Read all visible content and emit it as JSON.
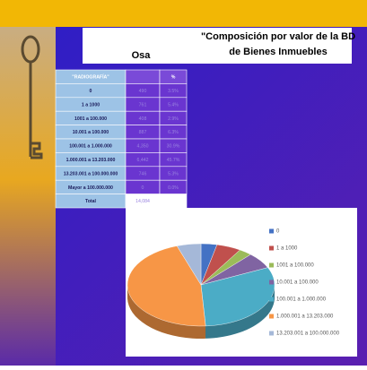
{
  "header": {
    "left": "Osa",
    "title_line1": "\"Composición por valor de la BD",
    "title_line2": "de Bienes Inmuebles"
  },
  "table": {
    "header": [
      "\"RADIOGRAFÍA\"",
      "%"
    ],
    "rows": [
      [
        "0",
        "490",
        "3.5%"
      ],
      [
        "1 a 1000",
        "761",
        "5.4%"
      ],
      [
        "1001 a 100.000",
        "408",
        "2.9%"
      ],
      [
        "10.001 a 100.000",
        "887",
        "6.3%"
      ],
      [
        "100.001 a 1.000.000",
        "4,350",
        "30.9%"
      ],
      [
        "1.000.001 a 13.203.000",
        "6,442",
        "45.7%"
      ],
      [
        "13.203.001 a 100.000.000",
        "746",
        "5.3%"
      ],
      [
        "Mayor a 100.000.000",
        "0",
        "0.0%"
      ]
    ],
    "total": [
      "Total",
      "14,084"
    ]
  },
  "chart_data": {
    "type": "pie",
    "categories": [
      "0",
      "1 a 1000",
      "1001 a 100.000",
      "10.001 a 100.000",
      "100.001 a 1.000.000",
      "1.000.001 a 13.203.000",
      "13.203.001 a 100.000.000"
    ],
    "values": [
      3.5,
      5.4,
      2.9,
      6.3,
      30.9,
      45.7,
      5.3
    ],
    "colors": [
      "#4472c4",
      "#c0504d",
      "#9bbb59",
      "#8064a2",
      "#4bacc6",
      "#f79646",
      "#a5b8d8"
    ]
  }
}
